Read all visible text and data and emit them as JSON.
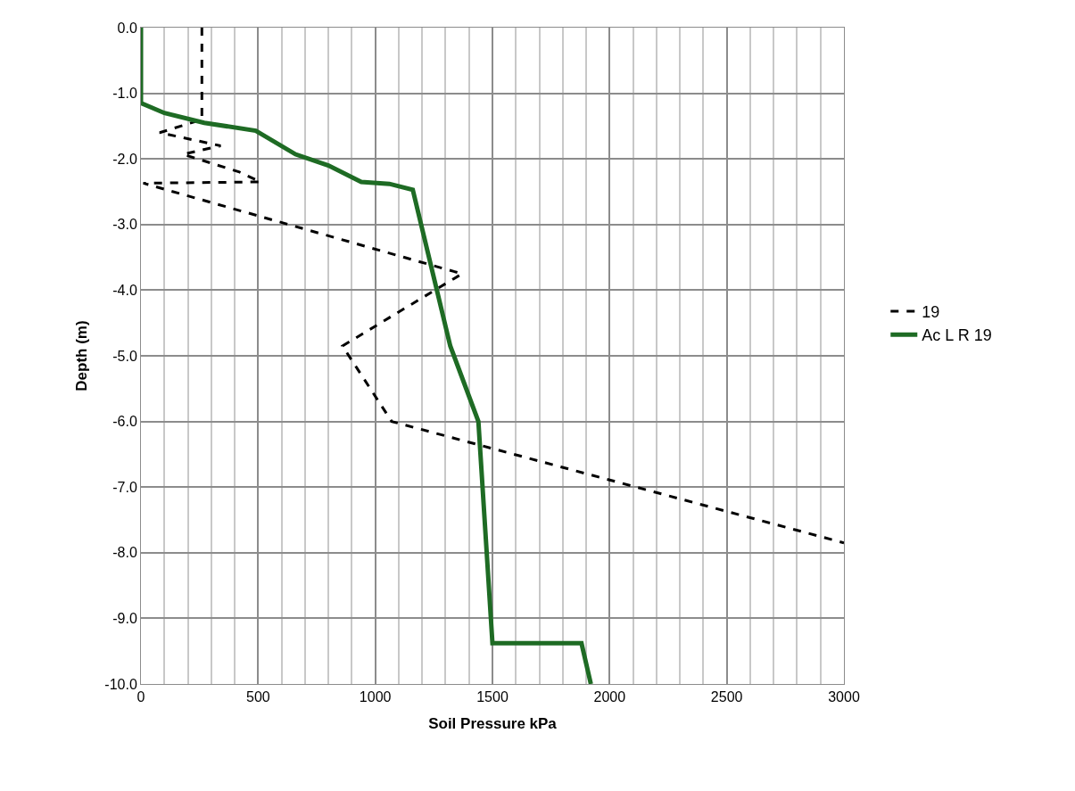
{
  "chart_data": {
    "type": "line",
    "xlabel": "Soil Pressure kPa",
    "ylabel": "Depth (m)",
    "xlim": [
      0,
      3000
    ],
    "xticks": [
      0,
      500,
      1000,
      1500,
      2000,
      2500,
      3000
    ],
    "ylim": [
      -10,
      0
    ],
    "yticks": [
      {
        "value": 0,
        "label": "0.0"
      },
      {
        "value": -1,
        "label": "-1.0"
      },
      {
        "value": -2,
        "label": "-2.0"
      },
      {
        "value": -3,
        "label": "-3.0"
      },
      {
        "value": -4,
        "label": "-4.0"
      },
      {
        "value": -5,
        "label": "-5.0"
      },
      {
        "value": -6,
        "label": "-6.0"
      },
      {
        "value": -7,
        "label": "-7.0"
      },
      {
        "value": -8,
        "label": "-8.0"
      },
      {
        "value": -9,
        "label": "-9.0"
      },
      {
        "value": -10,
        "label": "-10.0"
      }
    ],
    "grid": true,
    "legend": "right",
    "marker": "none",
    "series": [
      {
        "name": "19",
        "color": "#000000",
        "line_style": "dashed",
        "x": [
          260,
          260,
          80,
          340,
          180,
          420,
          510,
          10,
          1370,
          860,
          1070,
          3000
        ],
        "values": [
          0,
          -1.4,
          -1.6,
          -1.8,
          -1.93,
          -2.2,
          -2.35,
          -2.37,
          -3.75,
          -4.85,
          -6.0,
          -7.85
        ]
      },
      {
        "name": "Ac L R 19",
        "color": "#1e6b24",
        "line_style": "solid",
        "x": [
          0,
          0,
          100,
          270,
          490,
          660,
          800,
          940,
          1060,
          1160,
          1320,
          1440,
          1500,
          1880,
          1920
        ],
        "values": [
          0,
          -1.15,
          -1.3,
          -1.45,
          -1.57,
          -1.93,
          -2.1,
          -2.35,
          -2.38,
          -2.47,
          -4.85,
          -6.0,
          -9.38,
          -9.38,
          -10.0
        ]
      }
    ]
  }
}
